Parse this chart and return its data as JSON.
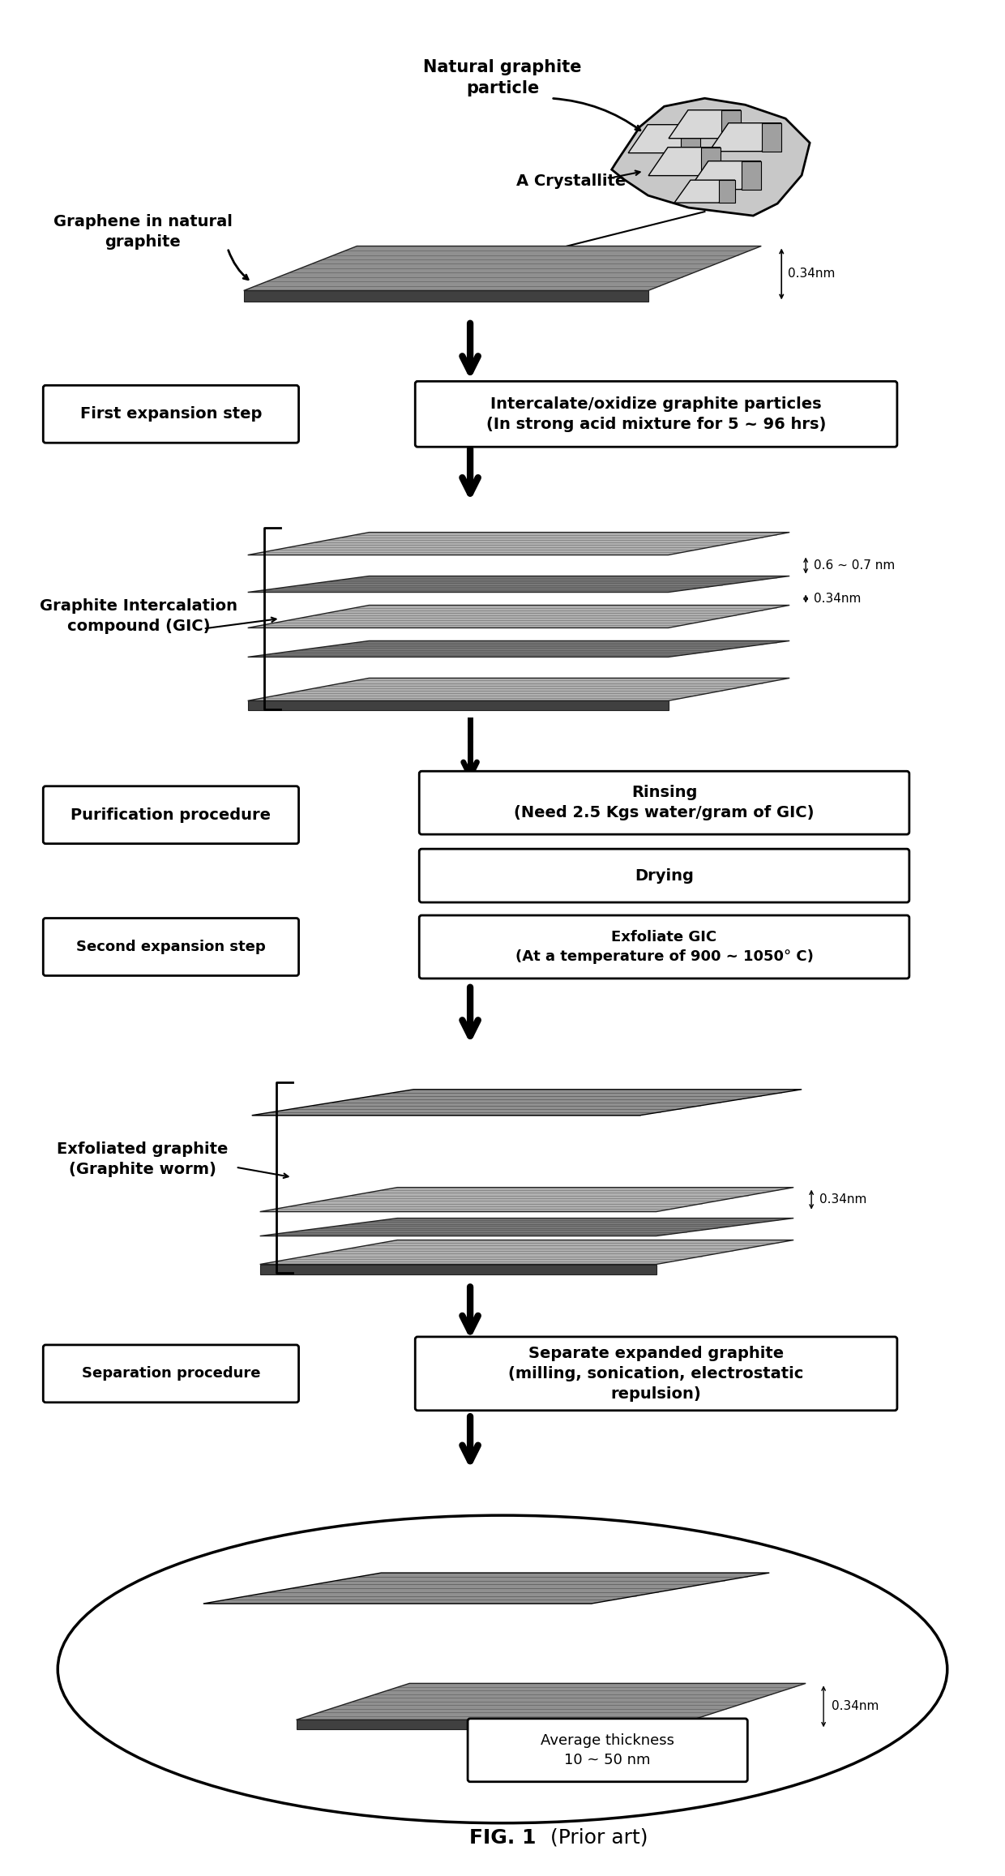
{
  "title": "FIG. 1",
  "title2": "(Prior art)",
  "bg_color": "#ffffff",
  "arrow_color": "#000000",
  "sheet_colors": {
    "light": "#909090",
    "medium": "#707070",
    "dark": "#505050",
    "very_light": "#b0b0b0"
  },
  "labels": {
    "natural_graphite": "Natural graphite\nparticle",
    "crystallite": "A Crystallite",
    "graphene_natural": "Graphene in natural\ngraphite",
    "first_expansion": "First expansion step",
    "intercalate": "Intercalate/oxidize graphite particles\n(In strong acid mixture for 5 ~ 96 hrs)",
    "gic": "Graphite Intercalation\ncompound (GIC)",
    "dim_07": "0.6 ~ 0.7 nm",
    "dim_034": "0.34nm",
    "purification": "Purification procedure",
    "rinsing": "Rinsing\n(Need 2.5 Kgs water/gram of GIC)",
    "drying": "Drying",
    "second_expansion": "Second expansion step",
    "exfoliate": "Exfoliate GIC\n(At a temperature of 900 ~ 1050° C)",
    "exfoliated": "Exfoliated graphite\n(Graphite worm)",
    "separation": "Separation procedure",
    "separate": "Separate expanded graphite\n(milling, sonication, electrostatic\nrepulsion)",
    "avg_thickness": "Average thickness\n10 ~ 50 nm"
  }
}
